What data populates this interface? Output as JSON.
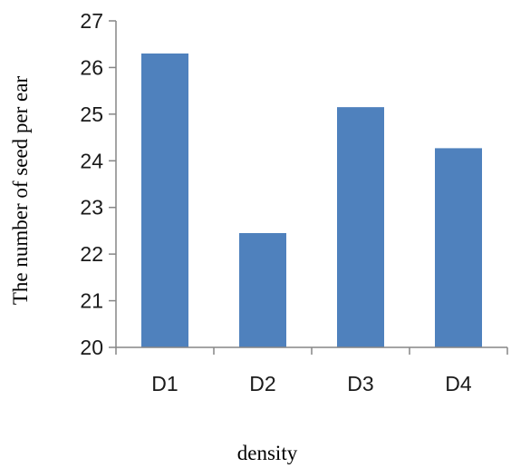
{
  "chart_data": {
    "type": "bar",
    "categories": [
      "D1",
      "D2",
      "D3",
      "D4"
    ],
    "values": [
      26.3,
      22.45,
      25.15,
      24.27
    ],
    "title": "",
    "xlabel": "density",
    "ylabel": "The number of seed per ear",
    "ylim": [
      20,
      27
    ],
    "yticks": [
      20,
      21,
      22,
      23,
      24,
      25,
      26,
      27
    ],
    "grid": false,
    "legend": "none",
    "bar_color": "#4f81bd",
    "axis_color": "#868686"
  }
}
